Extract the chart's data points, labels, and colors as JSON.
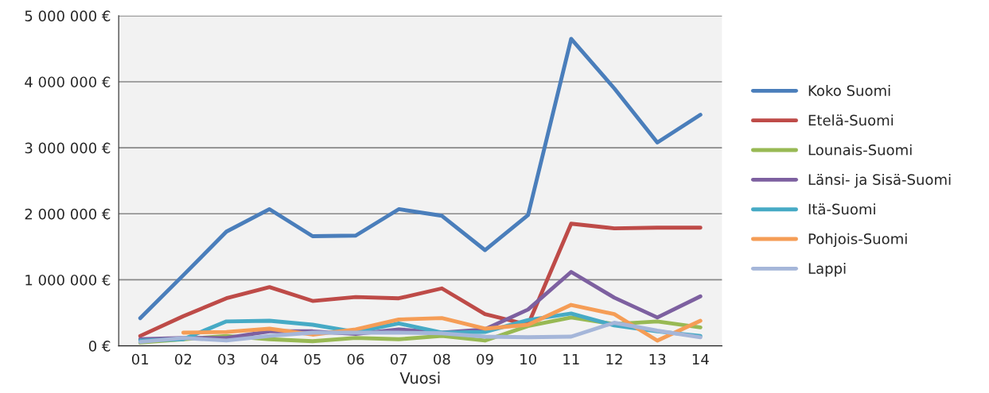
{
  "chart_data": {
    "type": "line",
    "xlabel": "Vuosi",
    "categories": [
      "01",
      "02",
      "03",
      "04",
      "05",
      "06",
      "07",
      "08",
      "09",
      "10",
      "11",
      "12",
      "13",
      "14"
    ],
    "series": [
      {
        "name": "Koko Suomi",
        "color": "#4a7ebb",
        "values": [
          420000,
          1070000,
          1730000,
          2070000,
          1660000,
          1670000,
          2070000,
          1970000,
          1450000,
          1980000,
          4650000,
          3900000,
          3080000,
          3500000
        ]
      },
      {
        "name": "Etelä-Suomi",
        "color": "#be4b48",
        "values": [
          150000,
          450000,
          720000,
          890000,
          680000,
          740000,
          720000,
          870000,
          480000,
          320000,
          1850000,
          1780000,
          1790000,
          1790000
        ]
      },
      {
        "name": "Lounais-Suomi",
        "color": "#98b954",
        "values": [
          50000,
          100000,
          150000,
          100000,
          70000,
          120000,
          100000,
          150000,
          80000,
          300000,
          430000,
          330000,
          370000,
          280000
        ]
      },
      {
        "name": "Länsi- ja Sisä-Suomi",
        "color": "#7d60a0",
        "values": [
          100000,
          120000,
          120000,
          220000,
          220000,
          180000,
          250000,
          200000,
          250000,
          550000,
          1120000,
          730000,
          430000,
          750000
        ]
      },
      {
        "name": "Itä-Suomi",
        "color": "#46aac5",
        "values": [
          80000,
          100000,
          370000,
          380000,
          320000,
          210000,
          340000,
          200000,
          210000,
          390000,
          490000,
          310000,
          220000,
          150000
        ]
      },
      {
        "name": "Pohjois-Suomi",
        "color": "#f59d56",
        "values": [
          null,
          200000,
          210000,
          260000,
          170000,
          250000,
          400000,
          420000,
          260000,
          320000,
          620000,
          480000,
          80000,
          380000
        ]
      },
      {
        "name": "Lappi",
        "color": "#a5b6d9",
        "values": [
          60000,
          120000,
          80000,
          150000,
          200000,
          200000,
          200000,
          190000,
          140000,
          130000,
          140000,
          350000,
          230000,
          130000
        ]
      }
    ],
    "ylim": [
      0,
      5000000
    ],
    "yticks": [
      {
        "value": 0,
        "label": "0 €"
      },
      {
        "value": 1000000,
        "label": "1 000 000 €"
      },
      {
        "value": 2000000,
        "label": "2 000 000 €"
      },
      {
        "value": 3000000,
        "label": "3 000 000 €"
      },
      {
        "value": 4000000,
        "label": "4 000 000 €"
      },
      {
        "value": 5000000,
        "label": "5 000 000 €"
      }
    ],
    "grid": "y",
    "legend": "right",
    "marker": "none",
    "line_style": "solid"
  }
}
